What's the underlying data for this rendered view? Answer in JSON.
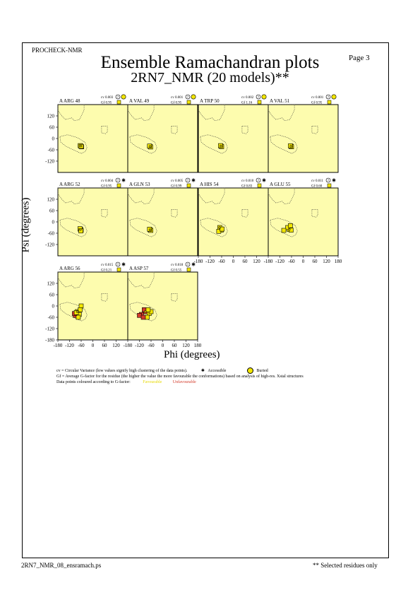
{
  "header": {
    "program": "PROCHECK-NMR",
    "page": "Page  3",
    "title": "Ensemble Ramachandran plots",
    "subtitle": "2RN7_NMR (20 models)**"
  },
  "footer": {
    "filename": "2RN7_NMR_08_ensramach.ps",
    "note": "** Selected residues only"
  },
  "legend": {
    "line1": "cv = Circular Variance (low values signify high clustering of the data points).",
    "accessible": "Accessible",
    "buried": "Buried",
    "line2": "Gf = Average G-factor for the residue (the higher the value the more favourable the conformations)  based on analysis of high-res. Xstal structures",
    "line3": "Data points coloured according to G-factor:",
    "favourable": "Favourable",
    "unfavourable": "Unfavourable"
  },
  "colors": {
    "panel_bg": "#fdfcae",
    "favourable": "#f2e600",
    "unfavourable": "#d33a2a",
    "point_core": "#a8a000"
  },
  "chart_data": {
    "type": "scatter",
    "xlabel": "Phi (degrees)",
    "ylabel": "Psi (degrees)",
    "xlim": [
      -180,
      180
    ],
    "ylim": [
      -180,
      180
    ],
    "xticks": [
      -180,
      -120,
      -60,
      0,
      60,
      120,
      180
    ],
    "yticks": [
      -180,
      -120,
      -60,
      0,
      60,
      120
    ],
    "panels": [
      {
        "residue": "A ARG 48",
        "cv": "0.003",
        "gf": "0.95",
        "access": "buried",
        "points": [
          [
            -62,
            -40
          ],
          [
            -58,
            -44
          ],
          [
            -65,
            -38
          ],
          [
            -60,
            -42
          ]
        ]
      },
      {
        "residue": "A VAL 49",
        "cv": "0.001",
        "gf": "0.95",
        "access": "buried",
        "points": [
          [
            -65,
            -42
          ],
          [
            -62,
            -45
          ],
          [
            -68,
            -40
          ]
        ]
      },
      {
        "residue": "A TRP 50",
        "cv": "0.002",
        "gf": "1.16",
        "access": "buried",
        "points": [
          [
            -64,
            -40
          ],
          [
            -60,
            -43
          ],
          [
            -66,
            -38
          ]
        ]
      },
      {
        "residue": "A VAL 51",
        "cv": "0.001",
        "gf": "0.95",
        "access": "buried",
        "points": [
          [
            -63,
            -41
          ],
          [
            -60,
            -44
          ],
          [
            -66,
            -39
          ]
        ]
      },
      {
        "residue": "A ARG 52",
        "cv": "0.004",
        "gf": "0.95",
        "access": "accessible",
        "points": [
          [
            -64,
            -40
          ],
          [
            -60,
            -44
          ],
          [
            -66,
            -36
          ],
          [
            -62,
            -48
          ]
        ]
      },
      {
        "residue": "A GLN 53",
        "cv": "0.005",
        "gf": "0.99",
        "access": "accessible",
        "points": [
          [
            -65,
            -42
          ],
          [
            -61,
            -45
          ],
          [
            -68,
            -39
          ]
        ]
      },
      {
        "residue": "A HIS 54",
        "cv": "0.010",
        "gf": "0.83",
        "access": "accessible",
        "points": [
          [
            -70,
            -30
          ],
          [
            -62,
            -44
          ],
          [
            -75,
            -50
          ],
          [
            -58,
            -38
          ]
        ]
      },
      {
        "residue": "A GLU 55",
        "cv": "0.011",
        "gf": "0.60",
        "access": "accessible",
        "points": [
          [
            -72,
            -40
          ],
          [
            -62,
            -44
          ],
          [
            -80,
            -30
          ],
          [
            -100,
            -45
          ],
          [
            -66,
            -20
          ]
        ]
      },
      {
        "residue": "A ARG 56",
        "cv": "0.015",
        "gf": "0.21",
        "access": "accessible",
        "points": [
          [
            -80,
            -30
          ],
          [
            -70,
            -45
          ],
          [
            -90,
            -50
          ],
          [
            -60,
            0
          ],
          [
            -75,
            -60
          ],
          [
            -95,
            -40
          ],
          [
            -65,
            -20
          ],
          [
            -85,
            -35
          ]
        ]
      },
      {
        "residue": "A ASP 57",
        "cv": "0.018",
        "gf": "0.55",
        "access": "accessible",
        "points": [
          [
            -90,
            -30
          ],
          [
            -70,
            -40
          ],
          [
            -110,
            -45
          ],
          [
            -60,
            -30
          ],
          [
            -80,
            -60
          ],
          [
            -120,
            -50
          ],
          [
            -95,
            -20
          ],
          [
            -75,
            -20
          ],
          [
            -100,
            -60
          ]
        ]
      }
    ]
  }
}
